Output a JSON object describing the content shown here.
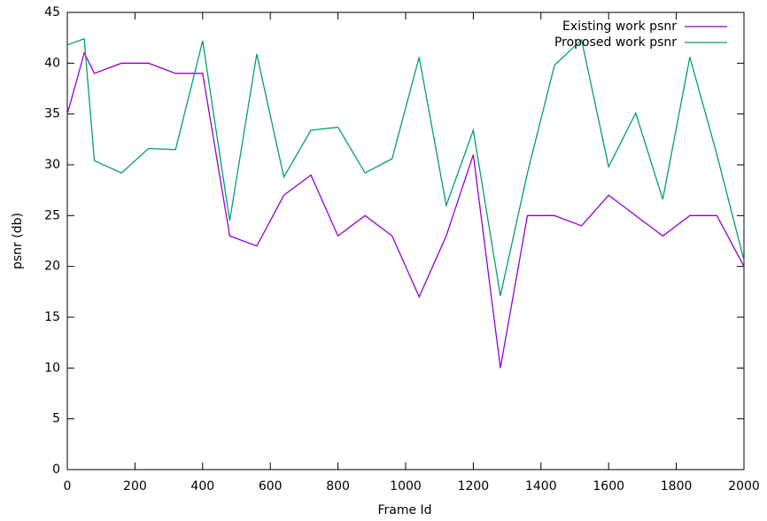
{
  "chart_data": {
    "type": "line",
    "x_label": "Frame Id",
    "y_label": "psnr (db)",
    "x": [
      0,
      50,
      80,
      160,
      240,
      320,
      400,
      480,
      560,
      640,
      720,
      800,
      880,
      960,
      1040,
      1120,
      1200,
      1280,
      1360,
      1440,
      1520,
      1600,
      1680,
      1760,
      1840,
      1920,
      2000
    ],
    "series": [
      {
        "name": "Existing work psnr",
        "color": "#9400d3",
        "values": [
          35,
          41,
          39,
          40,
          40,
          39,
          39,
          23,
          22,
          27,
          29,
          23,
          25,
          23,
          17,
          23,
          31,
          10,
          25,
          25,
          24,
          27,
          25,
          23,
          25,
          25,
          20
        ]
      },
      {
        "name": "Proposed work psnr",
        "color": "#009e73",
        "values": [
          41.8,
          42.4,
          30.4,
          29.2,
          31.6,
          31.5,
          42.2,
          24.5,
          40.9,
          28.8,
          33.4,
          33.7,
          29.2,
          30.6,
          40.6,
          26,
          33.4,
          17.1,
          29.2,
          39.8,
          42.3,
          29.8,
          35.1,
          26.6,
          40.6,
          31,
          20.6
        ]
      }
    ],
    "xlim": [
      0,
      2000
    ],
    "xticks": [
      0,
      200,
      400,
      600,
      800,
      1000,
      1200,
      1400,
      1600,
      1800,
      2000
    ],
    "ylim": [
      0,
      45
    ],
    "yticks": [
      0,
      5,
      10,
      15,
      20,
      25,
      30,
      35,
      40,
      45
    ],
    "grid": false,
    "legend": "top-right"
  }
}
